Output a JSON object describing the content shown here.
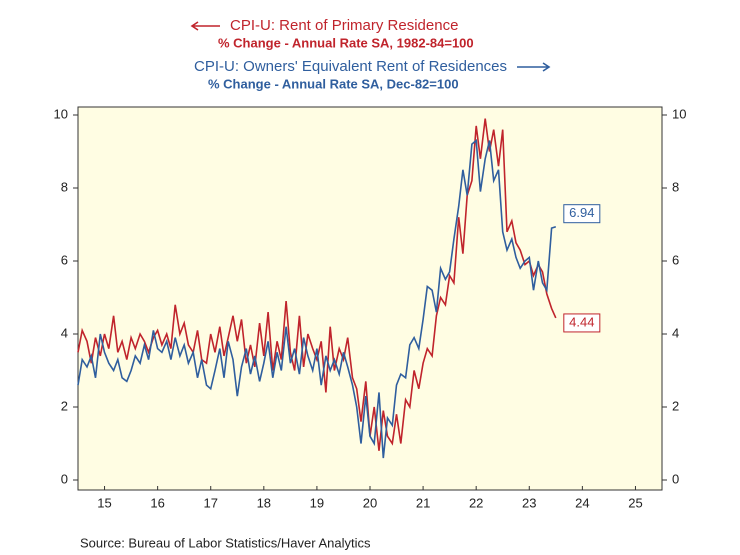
{
  "chart_data": {
    "type": "line",
    "source": "Source:  Bureau of Labor Statistics/Haver Analytics",
    "x": [
      2015.0,
      2015.08,
      2015.17,
      2015.25,
      2015.33,
      2015.42,
      2015.5,
      2015.58,
      2015.67,
      2015.75,
      2015.83,
      2015.92,
      2016.0,
      2016.08,
      2016.17,
      2016.25,
      2016.33,
      2016.42,
      2016.5,
      2016.58,
      2016.67,
      2016.75,
      2016.83,
      2016.92,
      2017.0,
      2017.08,
      2017.17,
      2017.25,
      2017.33,
      2017.42,
      2017.5,
      2017.58,
      2017.67,
      2017.75,
      2017.83,
      2017.92,
      2018.0,
      2018.08,
      2018.17,
      2018.25,
      2018.33,
      2018.42,
      2018.5,
      2018.58,
      2018.67,
      2018.75,
      2018.83,
      2018.92,
      2019.0,
      2019.08,
      2019.17,
      2019.25,
      2019.33,
      2019.42,
      2019.5,
      2019.58,
      2019.67,
      2019.75,
      2019.83,
      2019.92,
      2020.0,
      2020.08,
      2020.17,
      2020.25,
      2020.33,
      2020.42,
      2020.5,
      2020.58,
      2020.67,
      2020.75,
      2020.83,
      2020.92,
      2021.0,
      2021.08,
      2021.17,
      2021.25,
      2021.33,
      2021.42,
      2021.5,
      2021.58,
      2021.67,
      2021.75,
      2021.83,
      2021.92,
      2022.0,
      2022.08,
      2022.17,
      2022.25,
      2022.33,
      2022.42,
      2022.5,
      2022.58,
      2022.67,
      2022.75,
      2022.83,
      2022.92,
      2023.0,
      2023.08,
      2023.17,
      2023.25,
      2023.33,
      2023.42,
      2023.5,
      2023.58,
      2023.67,
      2023.75,
      2023.83,
      2023.92,
      2024.0
    ],
    "series": [
      {
        "name": "CPI-U: Rent of Primary Residence",
        "subtitle": "% Change - Annual Rate    SA, 1982-84=100",
        "color": "#c0242c",
        "axis": "y",
        "values": [
          3.5,
          4.1,
          3.8,
          3.2,
          3.9,
          3.4,
          4.0,
          3.6,
          4.5,
          3.5,
          3.8,
          3.3,
          3.9,
          3.6,
          4.0,
          3.8,
          3.5,
          3.9,
          4.1,
          3.7,
          4.0,
          3.6,
          4.8,
          4.0,
          4.3,
          3.7,
          3.5,
          4.1,
          3.3,
          3.2,
          4.0,
          3.5,
          4.2,
          3.4,
          3.9,
          4.5,
          3.8,
          4.4,
          3.2,
          3.7,
          3.1,
          4.3,
          3.4,
          4.6,
          3.0,
          3.8,
          3.3,
          4.9,
          3.5,
          3.0,
          4.5,
          3.1,
          4.0,
          3.6,
          3.3,
          3.8,
          2.4,
          4.2,
          3.0,
          3.6,
          3.3,
          3.9,
          2.8,
          2.5,
          1.6,
          2.7,
          1.2,
          2.0,
          0.8,
          1.9,
          1.2,
          1.0,
          1.8,
          1.0,
          2.2,
          2.0,
          3.0,
          2.5,
          3.2,
          3.6,
          3.4,
          4.5,
          5.0,
          4.8,
          5.6,
          5.4,
          7.2,
          6.2,
          7.8,
          8.2,
          9.7,
          8.8,
          9.9,
          9.0,
          9.6,
          8.6,
          9.6,
          6.8,
          7.1,
          6.5,
          6.3,
          5.9,
          6.0,
          5.6,
          5.9,
          5.7,
          5.1,
          4.7,
          4.44
        ]
      },
      {
        "name": "CPI-U: Owners' Equivalent Rent of Residences",
        "subtitle": "% Change - Annual Rate    SA, Dec-82=100",
        "color": "#2f5e9e",
        "axis": "y2",
        "values": [
          2.6,
          3.3,
          3.1,
          3.4,
          2.8,
          4.0,
          3.5,
          3.2,
          3.0,
          3.3,
          2.8,
          2.7,
          3.0,
          3.4,
          3.2,
          3.7,
          3.3,
          4.1,
          3.6,
          3.5,
          3.8,
          3.3,
          3.9,
          3.4,
          3.7,
          3.2,
          3.5,
          2.8,
          3.3,
          2.6,
          2.5,
          3.0,
          3.6,
          2.8,
          3.8,
          3.3,
          2.3,
          3.1,
          3.6,
          2.9,
          3.4,
          2.7,
          3.2,
          3.8,
          2.8,
          3.5,
          3.0,
          4.2,
          3.2,
          3.6,
          2.9,
          3.9,
          3.4,
          3.0,
          3.6,
          2.6,
          3.4,
          3.0,
          3.3,
          2.9,
          3.5,
          3.1,
          2.6,
          2.0,
          1.0,
          2.3,
          1.2,
          1.0,
          2.4,
          0.6,
          1.7,
          1.5,
          2.6,
          2.9,
          2.8,
          3.7,
          3.9,
          3.6,
          4.4,
          5.3,
          5.2,
          4.6,
          5.8,
          5.5,
          5.7,
          6.6,
          7.5,
          8.5,
          7.8,
          9.2,
          9.3,
          7.9,
          8.8,
          9.3,
          8.2,
          8.5,
          6.8,
          6.3,
          6.6,
          6.1,
          5.8,
          6.0,
          6.1,
          5.2,
          6.0,
          5.4,
          5.2,
          6.9,
          6.94
        ]
      }
    ],
    "xlim": [
      2015,
      2026
    ],
    "xticks": [
      {
        "value": 2015.5,
        "label": "15"
      },
      {
        "value": 2016.5,
        "label": "16"
      },
      {
        "value": 2017.5,
        "label": "17"
      },
      {
        "value": 2018.5,
        "label": "18"
      },
      {
        "value": 2019.5,
        "label": "19"
      },
      {
        "value": 2020.5,
        "label": "20"
      },
      {
        "value": 2021.5,
        "label": "21"
      },
      {
        "value": 2022.5,
        "label": "22"
      },
      {
        "value": 2023.5,
        "label": "23"
      },
      {
        "value": 2024.5,
        "label": "24"
      },
      {
        "value": 2025.5,
        "label": "25"
      }
    ],
    "ylim": [
      0,
      10
    ],
    "yticks": [
      0,
      2,
      4,
      6,
      8,
      10
    ],
    "y2lim": [
      0,
      10
    ],
    "y2ticks": [
      0,
      2,
      4,
      6,
      8,
      10
    ],
    "background": "#fffde3"
  }
}
